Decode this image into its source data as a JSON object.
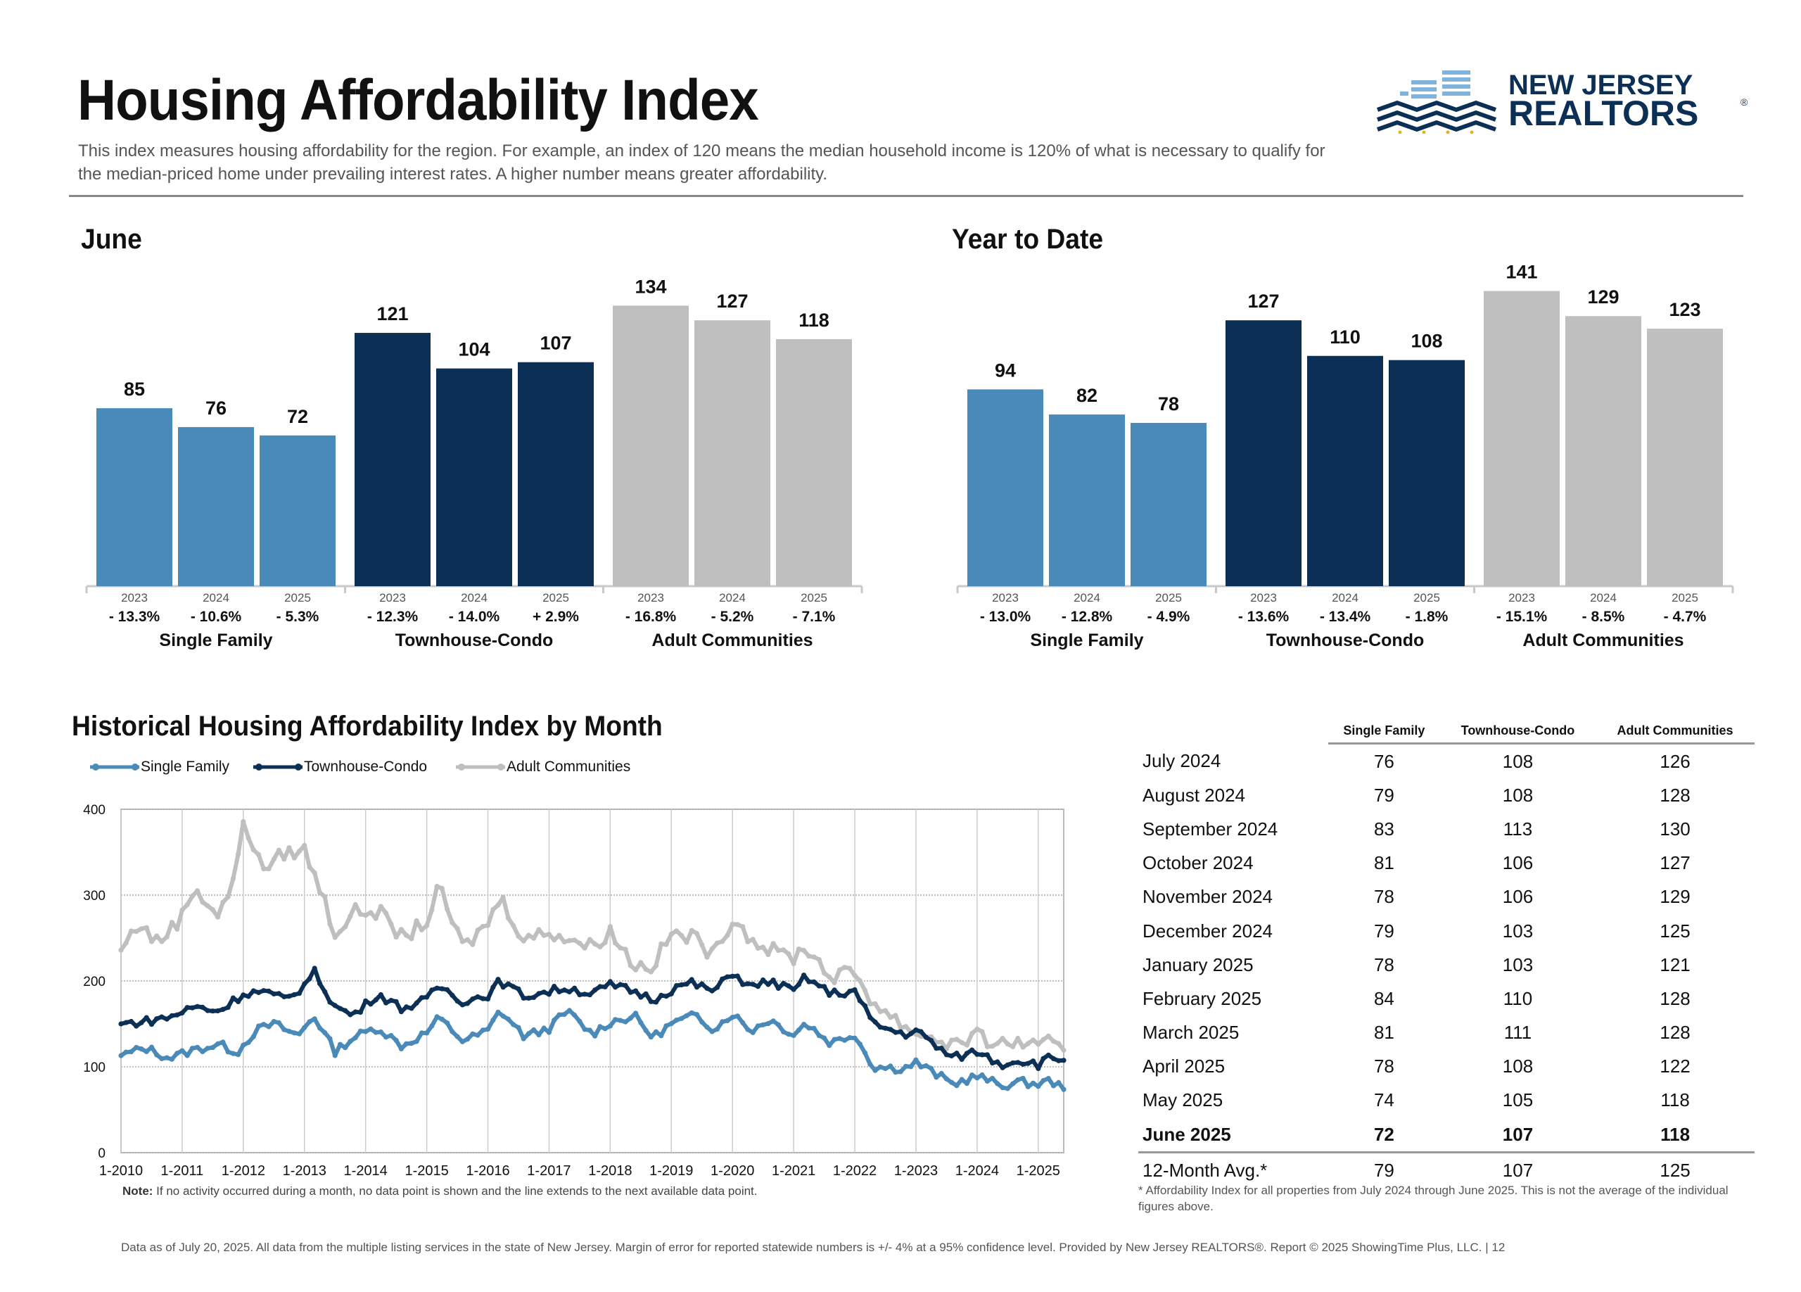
{
  "header": {
    "title": "Housing Affordability Index",
    "subtitle": "This index measures housing affordability for the region. For example, an index of 120 means the median household income is 120% of what is necessary to qualify for the median-priced home under prevailing interest rates. A higher number means greater affordability.",
    "logo_line1": "NEW JERSEY",
    "logo_line2": "REALTORS",
    "logo_mark": "®"
  },
  "colors": {
    "single_family": "#4a8ab9",
    "townhouse_condo": "#0c3055",
    "adult_communities": "#bfbfbf"
  },
  "chart_data": [
    {
      "type": "bar",
      "title": "June",
      "groups": [
        "Single Family",
        "Townhouse-Condo",
        "Adult Communities"
      ],
      "categories": [
        "2023",
        "2024",
        "2025"
      ],
      "series": [
        {
          "name": "Single Family",
          "values": [
            85,
            76,
            72
          ],
          "changes": [
            "- 13.3%",
            "- 10.6%",
            "- 5.3%"
          ]
        },
        {
          "name": "Townhouse-Condo",
          "values": [
            121,
            104,
            107
          ],
          "changes": [
            "- 12.3%",
            "- 14.0%",
            "+ 2.9%"
          ]
        },
        {
          "name": "Adult Communities",
          "values": [
            134,
            127,
            118
          ],
          "changes": [
            "- 16.8%",
            "- 5.2%",
            "- 7.1%"
          ]
        }
      ]
    },
    {
      "type": "bar",
      "title": "Year to Date",
      "groups": [
        "Single Family",
        "Townhouse-Condo",
        "Adult Communities"
      ],
      "categories": [
        "2023",
        "2024",
        "2025"
      ],
      "series": [
        {
          "name": "Single Family",
          "values": [
            94,
            82,
            78
          ],
          "changes": [
            "- 13.0%",
            "- 12.8%",
            "- 4.9%"
          ]
        },
        {
          "name": "Townhouse-Condo",
          "values": [
            127,
            110,
            108
          ],
          "changes": [
            "- 13.6%",
            "- 13.4%",
            "- 1.8%"
          ]
        },
        {
          "name": "Adult Communities",
          "values": [
            141,
            129,
            123
          ],
          "changes": [
            "- 15.1%",
            "- 8.5%",
            "- 4.7%"
          ]
        }
      ]
    },
    {
      "type": "line",
      "title": "Historical Housing Affordability Index by Month",
      "ylim": [
        0,
        400
      ],
      "yticks": [
        "0",
        "100",
        "200",
        "300",
        "400"
      ],
      "xticks": [
        "1-2010",
        "1-2011",
        "1-2012",
        "1-2013",
        "1-2014",
        "1-2015",
        "1-2016",
        "1-2017",
        "1-2018",
        "1-2019",
        "1-2020",
        "1-2021",
        "1-2022",
        "1-2023",
        "1-2024",
        "1-2025"
      ],
      "x_start": "2010-01",
      "x_end": "2025-06",
      "grid": true,
      "legend_position": "top-left",
      "series": [
        {
          "name": "Single Family",
          "anchors": [
            [
              2010.0,
              113
            ],
            [
              2010.4,
              122
            ],
            [
              2010.8,
              110
            ],
            [
              2011.2,
              120
            ],
            [
              2011.6,
              126
            ],
            [
              2011.9,
              117
            ],
            [
              2012.2,
              142
            ],
            [
              2012.5,
              150
            ],
            [
              2012.9,
              136
            ],
            [
              2013.15,
              160
            ],
            [
              2013.5,
              118
            ],
            [
              2013.8,
              134
            ],
            [
              2014.2,
              146
            ],
            [
              2014.6,
              124
            ],
            [
              2015.0,
              140
            ],
            [
              2015.2,
              157
            ],
            [
              2015.6,
              130
            ],
            [
              2016.0,
              142
            ],
            [
              2016.2,
              166
            ],
            [
              2016.6,
              135
            ],
            [
              2017.0,
              145
            ],
            [
              2017.3,
              165
            ],
            [
              2017.7,
              138
            ],
            [
              2018.0,
              152
            ],
            [
              2018.4,
              159
            ],
            [
              2018.7,
              134
            ],
            [
              2019.0,
              150
            ],
            [
              2019.4,
              160
            ],
            [
              2019.7,
              144
            ],
            [
              2020.0,
              162
            ],
            [
              2020.3,
              142
            ],
            [
              2020.6,
              155
            ],
            [
              2021.0,
              138
            ],
            [
              2021.2,
              151
            ],
            [
              2021.6,
              128
            ],
            [
              2022.0,
              138
            ],
            [
              2022.3,
              100
            ],
            [
              2022.8,
              98
            ],
            [
              2023.0,
              105
            ],
            [
              2023.6,
              80
            ],
            [
              2024.0,
              89
            ],
            [
              2024.4,
              78
            ],
            [
              2024.7,
              82
            ],
            [
              2025.0,
              80
            ],
            [
              2025.2,
              84
            ],
            [
              2025.45,
              72
            ]
          ]
        },
        {
          "name": "Townhouse-Condo",
          "anchors": [
            [
              2010.0,
              150
            ],
            [
              2010.4,
              153
            ],
            [
              2010.8,
              158
            ],
            [
              2011.2,
              170
            ],
            [
              2011.6,
              165
            ],
            [
              2012.0,
              185
            ],
            [
              2012.3,
              188
            ],
            [
              2012.7,
              178
            ],
            [
              2013.0,
              195
            ],
            [
              2013.15,
              212
            ],
            [
              2013.5,
              170
            ],
            [
              2013.8,
              160
            ],
            [
              2014.2,
              185
            ],
            [
              2014.6,
              168
            ],
            [
              2015.0,
              178
            ],
            [
              2015.2,
              195
            ],
            [
              2015.6,
              176
            ],
            [
              2016.0,
              184
            ],
            [
              2016.2,
              200
            ],
            [
              2016.6,
              182
            ],
            [
              2017.0,
              188
            ],
            [
              2017.3,
              192
            ],
            [
              2017.7,
              185
            ],
            [
              2018.0,
              195
            ],
            [
              2018.4,
              188
            ],
            [
              2018.7,
              178
            ],
            [
              2019.0,
              190
            ],
            [
              2019.3,
              198
            ],
            [
              2019.7,
              188
            ],
            [
              2020.0,
              210
            ],
            [
              2020.3,
              192
            ],
            [
              2020.6,
              200
            ],
            [
              2021.0,
              188
            ],
            [
              2021.2,
              205
            ],
            [
              2021.6,
              185
            ],
            [
              2022.0,
              188
            ],
            [
              2022.3,
              150
            ],
            [
              2022.8,
              138
            ],
            [
              2023.0,
              142
            ],
            [
              2023.6,
              110
            ],
            [
              2024.0,
              118
            ],
            [
              2024.4,
              103
            ],
            [
              2024.7,
              108
            ],
            [
              2025.0,
              103
            ],
            [
              2025.2,
              111
            ],
            [
              2025.45,
              107
            ]
          ]
        },
        {
          "name": "Adult Communities",
          "anchors": [
            [
              2010.0,
              236
            ],
            [
              2010.3,
              268
            ],
            [
              2010.6,
              244
            ],
            [
              2011.0,
              276
            ],
            [
              2011.2,
              310
            ],
            [
              2011.6,
              275
            ],
            [
              2011.9,
              330
            ],
            [
              2012.0,
              390
            ],
            [
              2012.3,
              330
            ],
            [
              2012.7,
              350
            ],
            [
              2013.0,
              352
            ],
            [
              2013.3,
              300
            ],
            [
              2013.5,
              255
            ],
            [
              2013.8,
              280
            ],
            [
              2014.2,
              282
            ],
            [
              2014.6,
              250
            ],
            [
              2015.0,
              270
            ],
            [
              2015.2,
              308
            ],
            [
              2015.6,
              238
            ],
            [
              2016.0,
              268
            ],
            [
              2016.2,
              298
            ],
            [
              2016.6,
              248
            ],
            [
              2017.0,
              258
            ],
            [
              2017.3,
              250
            ],
            [
              2017.7,
              240
            ],
            [
              2018.0,
              258
            ],
            [
              2018.4,
              218
            ],
            [
              2018.7,
              218
            ],
            [
              2019.0,
              255
            ],
            [
              2019.4,
              250
            ],
            [
              2019.7,
              228
            ],
            [
              2020.0,
              275
            ],
            [
              2020.3,
              250
            ],
            [
              2020.6,
              236
            ],
            [
              2021.0,
              228
            ],
            [
              2021.2,
              240
            ],
            [
              2021.6,
              205
            ],
            [
              2022.0,
              210
            ],
            [
              2022.3,
              175
            ],
            [
              2022.8,
              148
            ],
            [
              2023.0,
              140
            ],
            [
              2023.6,
              126
            ],
            [
              2024.0,
              135
            ],
            [
              2024.4,
              126
            ],
            [
              2024.7,
              130
            ],
            [
              2025.0,
              121
            ],
            [
              2025.2,
              128
            ],
            [
              2025.45,
              118
            ]
          ]
        }
      ]
    }
  ],
  "legend": {
    "single_family": "Single Family",
    "townhouse_condo": "Townhouse-Condo",
    "adult_communities": "Adult Communities"
  },
  "note": {
    "label": "Note:",
    "text": " If no activity occurred during a month, no data point is shown and the line extends to the next available data point."
  },
  "table": {
    "columns": [
      "Single Family",
      "Townhouse-Condo",
      "Adult Communities"
    ],
    "rows": [
      {
        "label": "July 2024",
        "values": [
          "76",
          "108",
          "126"
        ]
      },
      {
        "label": "August 2024",
        "values": [
          "79",
          "108",
          "128"
        ]
      },
      {
        "label": "September 2024",
        "values": [
          "83",
          "113",
          "130"
        ]
      },
      {
        "label": "October 2024",
        "values": [
          "81",
          "106",
          "127"
        ]
      },
      {
        "label": "November 2024",
        "values": [
          "78",
          "106",
          "129"
        ]
      },
      {
        "label": "December 2024",
        "values": [
          "79",
          "103",
          "125"
        ]
      },
      {
        "label": "January 2025",
        "values": [
          "78",
          "103",
          "121"
        ]
      },
      {
        "label": "February 2025",
        "values": [
          "84",
          "110",
          "128"
        ]
      },
      {
        "label": "March 2025",
        "values": [
          "81",
          "111",
          "128"
        ]
      },
      {
        "label": "April 2025",
        "values": [
          "78",
          "108",
          "122"
        ]
      },
      {
        "label": "May 2025",
        "values": [
          "74",
          "105",
          "118"
        ]
      },
      {
        "label": "June 2025",
        "values": [
          "72",
          "107",
          "118"
        ],
        "bold": true
      },
      {
        "label": "12-Month Avg.*",
        "values": [
          "79",
          "107",
          "125"
        ]
      }
    ],
    "footnote": "* Affordability Index for all properties from July 2024 through June 2025. This is not the average of the individual figures above."
  },
  "footer": "Data as of July 20, 2025. All data from the multiple listing services in the state of New Jersey. Margin of error for reported statewide numbers is +/- 4% at a 95% confidence level. Provided by New Jersey REALTORS®. Report © 2025 ShowingTime Plus, LLC. |  12"
}
